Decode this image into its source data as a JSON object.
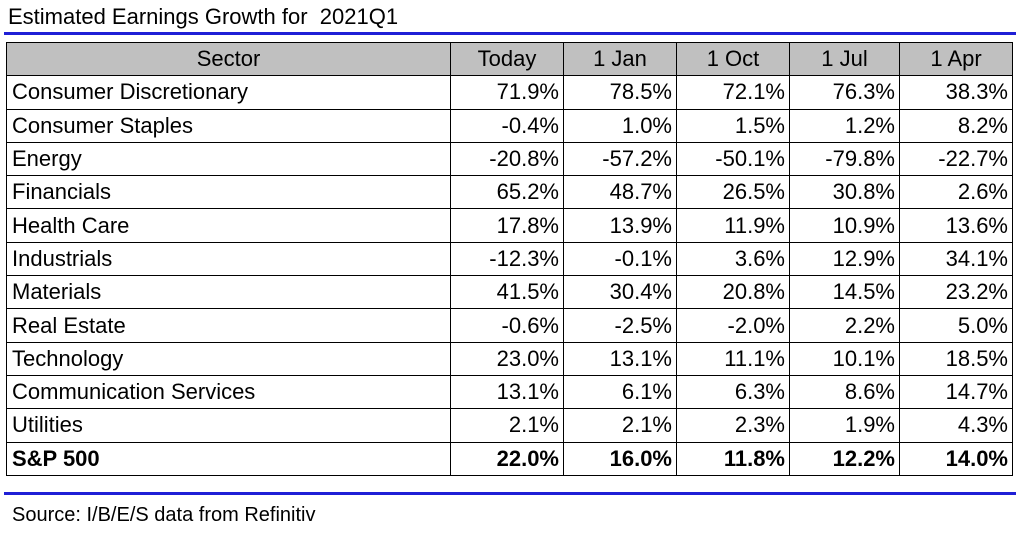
{
  "header": {
    "title": "Estimated Earnings Growth for  2021Q1"
  },
  "chart_data": {
    "type": "table",
    "title": "Estimated Earnings Growth for  2021Q1",
    "columns": [
      "Sector",
      "Today",
      "1 Jan",
      "1 Oct",
      "1 Jul",
      "1 Apr"
    ],
    "rows": [
      {
        "sector": "Consumer Discretionary",
        "values": [
          "71.9%",
          "78.5%",
          "72.1%",
          "76.3%",
          "38.3%"
        ]
      },
      {
        "sector": "Consumer Staples",
        "values": [
          "-0.4%",
          "1.0%",
          "1.5%",
          "1.2%",
          "8.2%"
        ]
      },
      {
        "sector": "Energy",
        "values": [
          "-20.8%",
          "-57.2%",
          "-50.1%",
          "-79.8%",
          "-22.7%"
        ]
      },
      {
        "sector": "Financials",
        "values": [
          "65.2%",
          "48.7%",
          "26.5%",
          "30.8%",
          "2.6%"
        ]
      },
      {
        "sector": "Health Care",
        "values": [
          "17.8%",
          "13.9%",
          "11.9%",
          "10.9%",
          "13.6%"
        ]
      },
      {
        "sector": "Industrials",
        "values": [
          "-12.3%",
          "-0.1%",
          "3.6%",
          "12.9%",
          "34.1%"
        ]
      },
      {
        "sector": "Materials",
        "values": [
          "41.5%",
          "30.4%",
          "20.8%",
          "14.5%",
          "23.2%"
        ]
      },
      {
        "sector": "Real Estate",
        "values": [
          "-0.6%",
          "-2.5%",
          "-2.0%",
          "2.2%",
          "5.0%"
        ]
      },
      {
        "sector": "Technology",
        "values": [
          "23.0%",
          "13.1%",
          "11.1%",
          "10.1%",
          "18.5%"
        ]
      },
      {
        "sector": "Communication Services",
        "values": [
          "13.1%",
          "6.1%",
          "6.3%",
          "8.6%",
          "14.7%"
        ]
      },
      {
        "sector": "Utilities",
        "values": [
          "2.1%",
          "2.1%",
          "2.3%",
          "1.9%",
          "4.3%"
        ]
      },
      {
        "sector": "S&P 500",
        "values": [
          "22.0%",
          "16.0%",
          "11.8%",
          "12.2%",
          "14.0%"
        ],
        "total": true
      }
    ]
  },
  "footer": {
    "source": "Source: I/B/E/S data from Refinitiv"
  },
  "colors": {
    "rule": "#1f1fd6",
    "header_bg": "#c0c0c0",
    "border": "#000000"
  }
}
